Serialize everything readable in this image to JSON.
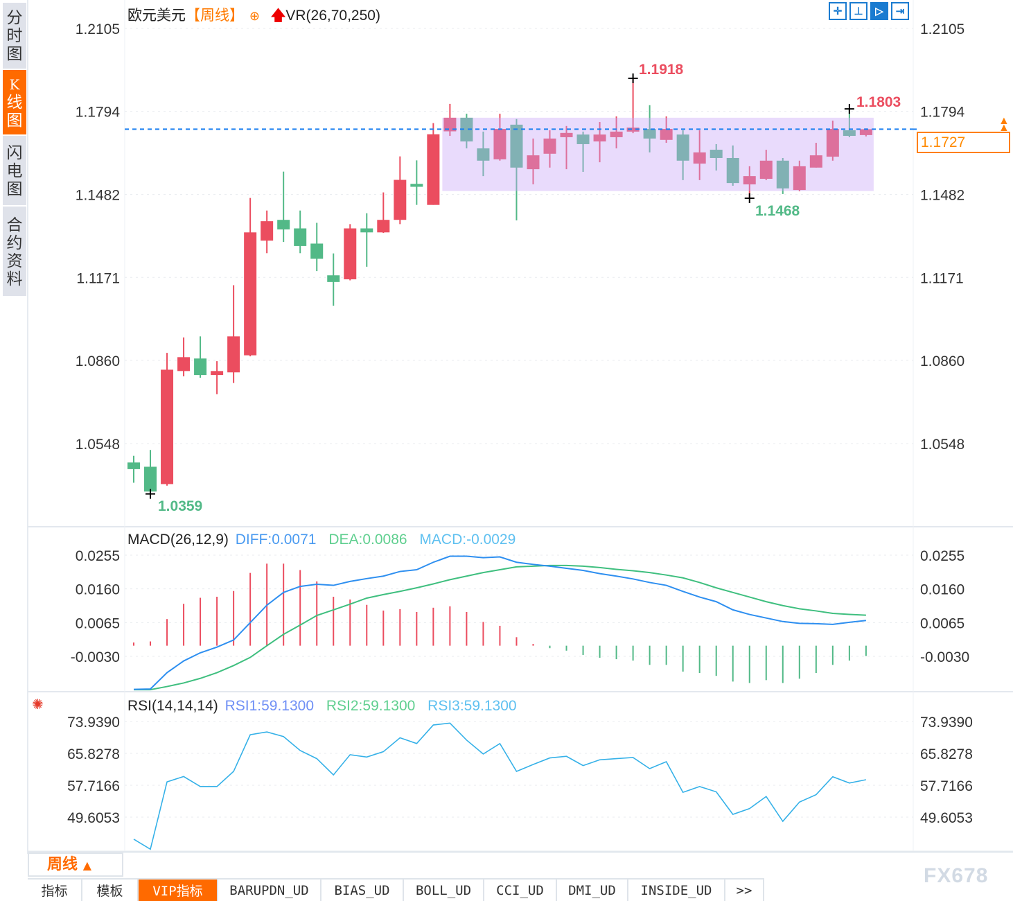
{
  "sidebar": {
    "items": [
      {
        "label": [
          "分",
          "时",
          "图"
        ],
        "active": false
      },
      {
        "label": [
          "K",
          "线",
          "图"
        ],
        "active": true
      },
      {
        "label": [
          "闪",
          "电",
          "图"
        ],
        "active": false
      },
      {
        "label": [
          "合",
          "约",
          "资",
          "料"
        ],
        "active": false
      }
    ]
  },
  "header": {
    "symbol": "欧元美元",
    "period": "【周线】",
    "indicator": "VR(26,70,250)",
    "add_icon": "circle-plus-icon",
    "arrow_icon": "red-up-arrow-icon"
  },
  "toolbar": {
    "icons": [
      "crosshair-icon",
      "range-icon",
      "playback-icon",
      "move-right-icon"
    ],
    "active_index": 2
  },
  "colors": {
    "up": "#eb4d5f",
    "down": "#52b987",
    "range_box": "#c9a4f7",
    "last_price_line": "#1a7ff0",
    "accent": "#ff6a00",
    "diff": "#2e8ff0",
    "dea": "#3fbf7f",
    "rsi": "#35b1e8"
  },
  "price_axis": {
    "ticks": [
      "1.2105",
      "1.1794",
      "1.1482",
      "1.1171",
      "1.0860",
      "1.0548"
    ],
    "last_price": "1.1727"
  },
  "annotations": {
    "high": "1.1918",
    "recent_high": "1.1803",
    "low": "1.0359",
    "recent_low": "1.1468"
  },
  "chart_data": [
    {
      "type": "candlestick",
      "title": "欧元美元【周线】",
      "ohlc_order": [
        "open",
        "high",
        "low",
        "close"
      ],
      "candles": [
        [
          1.0477,
          1.0502,
          1.0401,
          1.0452
        ],
        [
          1.0461,
          1.0524,
          1.0359,
          1.0368
        ],
        [
          1.0396,
          1.0888,
          1.039,
          1.0825
        ],
        [
          1.082,
          1.0946,
          1.08,
          1.0872
        ],
        [
          1.0867,
          1.095,
          1.0795,
          1.0805
        ],
        [
          1.0805,
          1.0857,
          1.0733,
          1.082
        ],
        [
          1.0815,
          1.1142,
          1.0775,
          1.095
        ],
        [
          1.0879,
          1.1469,
          1.0875,
          1.134
        ],
        [
          1.1309,
          1.1422,
          1.1262,
          1.1382
        ],
        [
          1.1387,
          1.1568,
          1.1304,
          1.1351
        ],
        [
          1.1355,
          1.1422,
          1.1262,
          1.1289
        ],
        [
          1.1298,
          1.1376,
          1.1195,
          1.1241
        ],
        [
          1.1179,
          1.1261,
          1.1065,
          1.1154
        ],
        [
          1.1164,
          1.1371,
          1.116,
          1.1355
        ],
        [
          1.1355,
          1.1412,
          1.1211,
          1.134
        ],
        [
          1.134,
          1.149,
          1.1338,
          1.1387
        ],
        [
          1.1387,
          1.1625,
          1.1371,
          1.1537
        ],
        [
          1.1522,
          1.161,
          1.1443,
          1.1511
        ],
        [
          1.1443,
          1.175,
          1.1443,
          1.1708
        ],
        [
          1.1719,
          1.1822,
          1.1702,
          1.177
        ],
        [
          1.177,
          1.1785,
          1.1655,
          1.1681
        ],
        [
          1.1655,
          1.1718,
          1.1551,
          1.1609
        ],
        [
          1.1614,
          1.1785,
          1.1609,
          1.1728
        ],
        [
          1.1744,
          1.1765,
          1.1385,
          1.1583
        ],
        [
          1.1577,
          1.1692,
          1.152,
          1.1629
        ],
        [
          1.1635,
          1.1723,
          1.1583,
          1.1692
        ],
        [
          1.1697,
          1.1739,
          1.1577,
          1.1713
        ],
        [
          1.1707,
          1.1718,
          1.1567,
          1.1671
        ],
        [
          1.1681,
          1.1754,
          1.1603,
          1.1707
        ],
        [
          1.1697,
          1.1775,
          1.1655,
          1.1718
        ],
        [
          1.1718,
          1.1918,
          1.1712,
          1.1733
        ],
        [
          1.1728,
          1.1817,
          1.164,
          1.1692
        ],
        [
          1.1687,
          1.1775,
          1.1676,
          1.1728
        ],
        [
          1.1707,
          1.1723,
          1.1536,
          1.1609
        ],
        [
          1.1598,
          1.1723,
          1.1536,
          1.164
        ],
        [
          1.165,
          1.1671,
          1.1572,
          1.1619
        ],
        [
          1.1619,
          1.1666,
          1.1515,
          1.1525
        ],
        [
          1.152,
          1.1588,
          1.1468,
          1.1551
        ],
        [
          1.1541,
          1.165,
          1.1536,
          1.1609
        ],
        [
          1.1609,
          1.1619,
          1.1484,
          1.1505
        ],
        [
          1.1499,
          1.1609,
          1.1494,
          1.1588
        ],
        [
          1.1583,
          1.1676,
          1.1583,
          1.1629
        ],
        [
          1.1624,
          1.1759,
          1.1609,
          1.1728
        ],
        [
          1.1723,
          1.1803,
          1.1697,
          1.1702
        ],
        [
          1.1705,
          1.173,
          1.17,
          1.1727
        ]
      ],
      "range_box": {
        "from_index": 19,
        "to_index": 44,
        "top": 1.177,
        "bottom": 1.1495
      },
      "last_price": 1.1727,
      "ylim": [
        1.03,
        1.2105
      ],
      "yticks": [
        1.2105,
        1.1794,
        1.1482,
        1.1171,
        1.086,
        1.0548
      ],
      "grid": true
    },
    {
      "type": "macd",
      "label": "MACD(26,12,9)",
      "diff_label": "DIFF:0.0071",
      "dea_label": "DEA:0.0086",
      "macd_label": "MACD:-0.0029",
      "yticks": [
        "0.0255",
        "0.0160",
        "0.0065",
        "-0.0030"
      ],
      "diff": [
        -0.0123,
        -0.0122,
        -0.0076,
        -0.0043,
        -0.002,
        -0.0004,
        0.0016,
        0.0065,
        0.0114,
        0.015,
        0.0167,
        0.0173,
        0.017,
        0.0181,
        0.0189,
        0.0196,
        0.0209,
        0.0214,
        0.0235,
        0.0252,
        0.0252,
        0.0248,
        0.025,
        0.0235,
        0.0229,
        0.0224,
        0.0218,
        0.0212,
        0.0203,
        0.0196,
        0.0188,
        0.0178,
        0.017,
        0.0153,
        0.0137,
        0.0124,
        0.0101,
        0.0088,
        0.0078,
        0.0068,
        0.0063,
        0.0062,
        0.006,
        0.0066,
        0.0071
      ],
      "dea": [
        -0.0124,
        -0.0124,
        -0.0115,
        -0.0105,
        -0.0092,
        -0.0076,
        -0.0056,
        -0.0033,
        0.0,
        0.0032,
        0.0058,
        0.0085,
        0.0101,
        0.0117,
        0.0134,
        0.0144,
        0.0153,
        0.0163,
        0.0174,
        0.0186,
        0.0196,
        0.0206,
        0.0214,
        0.0222,
        0.0224,
        0.0226,
        0.0226,
        0.0224,
        0.022,
        0.0215,
        0.0211,
        0.0206,
        0.0199,
        0.0191,
        0.0178,
        0.0163,
        0.015,
        0.0137,
        0.0124,
        0.0113,
        0.0104,
        0.0098,
        0.0091,
        0.0088,
        0.0086
      ],
      "histogram": [
        0.0009,
        0.0012,
        0.0075,
        0.0118,
        0.0135,
        0.0138,
        0.0154,
        0.0205,
        0.0231,
        0.0231,
        0.0213,
        0.0181,
        0.0138,
        0.013,
        0.0115,
        0.0099,
        0.0103,
        0.0095,
        0.0107,
        0.0111,
        0.0095,
        0.0067,
        0.0056,
        0.0024,
        0.0005,
        -0.0007,
        -0.0014,
        -0.0026,
        -0.0034,
        -0.0038,
        -0.0042,
        -0.0054,
        -0.0054,
        -0.0073,
        -0.0077,
        -0.0085,
        -0.0101,
        -0.0105,
        -0.0097,
        -0.0105,
        -0.0093,
        -0.0077,
        -0.0054,
        -0.0042,
        -0.0029
      ]
    },
    {
      "type": "line",
      "label": "RSI(14,14,14)",
      "rsi1_label": "RSI1:59.1300",
      "rsi2_label": "RSI2:59.1300",
      "rsi3_label": "RSI3:59.1300",
      "yticks": [
        "73.9390",
        "65.8278",
        "57.7166",
        "49.6053"
      ],
      "values": [
        43.99,
        41.45,
        58.58,
        59.94,
        57.4,
        57.4,
        61.24,
        70.57,
        71.28,
        70.1,
        66.56,
        64.49,
        60.35,
        65.49,
        64.9,
        66.26,
        69.8,
        68.33,
        73.05,
        73.53,
        69.21,
        65.67,
        68.33,
        61.24,
        63.01,
        64.67,
        65.08,
        62.72,
        64.19,
        64.49,
        64.78,
        61.95,
        63.72,
        55.92,
        57.4,
        56.04,
        50.31,
        51.79,
        54.86,
        48.54,
        53.44,
        55.33,
        59.88,
        58.29,
        59.13
      ]
    }
  ],
  "footer": {
    "period_label": "周线",
    "period_arrow": "▲",
    "tabs": [
      {
        "label": "指标",
        "active": false
      },
      {
        "label": "模板",
        "active": false
      },
      {
        "label": "VIP指标",
        "active": true
      },
      {
        "label": "BARUPDN_UD",
        "active": false
      },
      {
        "label": "BIAS_UD",
        "active": false
      },
      {
        "label": "BOLL_UD",
        "active": false
      },
      {
        "label": "CCI_UD",
        "active": false
      },
      {
        "label": "DMI_UD",
        "active": false
      },
      {
        "label": "INSIDE_UD",
        "active": false
      },
      {
        "label": ">>",
        "active": false
      }
    ],
    "watermark": "FX678"
  }
}
